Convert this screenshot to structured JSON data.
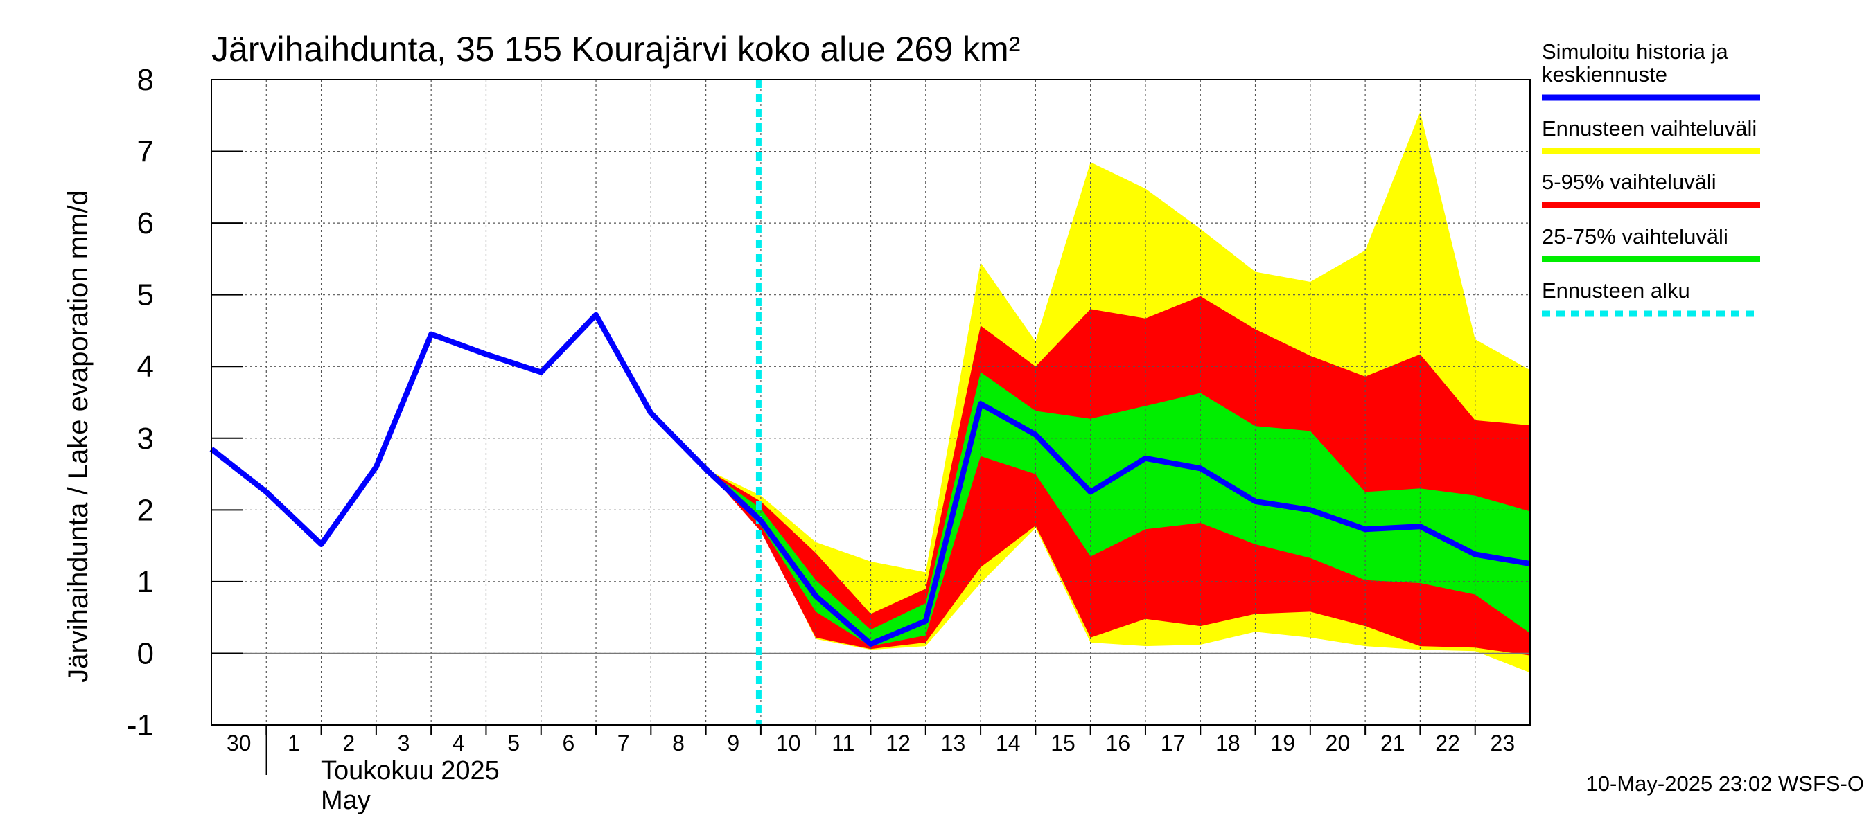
{
  "chart_data": {
    "type": "area",
    "title": "Järvihaihdunta, 35 155 Kourajärvi koko alue 269 km²",
    "ylabel": "Järvihaihdunta / Lake evaporation   mm/d",
    "ylim": [
      -1,
      8
    ],
    "yticks": [
      "-1",
      "0",
      "1",
      "2",
      "3",
      "4",
      "5",
      "6",
      "7",
      "8"
    ],
    "x_tick_labels": [
      "30",
      "1",
      "2",
      "3",
      "4",
      "5",
      "6",
      "7",
      "8",
      "9",
      "10",
      "11",
      "12",
      "13",
      "14",
      "15",
      "16",
      "17",
      "18",
      "19",
      "20",
      "21",
      "22",
      "23"
    ],
    "month_label_fi": "Toukokuu  2025",
    "month_label_en": "May",
    "grid": true,
    "legend_position": "right",
    "forecast_start_day": 10,
    "history": {
      "name": "Simuloitu historia ja keskiennuste",
      "color": "#0000ff",
      "x": [
        0,
        1,
        2,
        3,
        4,
        5,
        6,
        7,
        8,
        9,
        10
      ],
      "values": [
        2.85,
        2.25,
        1.52,
        2.6,
        4.45,
        4.17,
        3.92,
        4.72,
        3.35,
        2.57,
        1.85
      ]
    },
    "median": {
      "x": [
        9,
        10,
        11,
        12,
        13,
        14,
        15,
        16,
        17,
        18,
        19,
        20,
        21,
        22,
        23,
        24
      ],
      "values": [
        2.57,
        1.85,
        0.8,
        0.13,
        0.45,
        3.48,
        3.05,
        2.25,
        2.72,
        2.58,
        2.12,
        2.0,
        1.73,
        1.77,
        1.38,
        1.25
      ]
    },
    "bands": [
      {
        "name": "Ennusteen vaihteluväli",
        "color": "#ffff00",
        "x": [
          9,
          10,
          11,
          12,
          13,
          14,
          15,
          16,
          17,
          18,
          19,
          20,
          21,
          22,
          23,
          24
        ],
        "upper": [
          2.57,
          2.2,
          1.55,
          1.28,
          1.13,
          5.45,
          4.35,
          6.85,
          6.48,
          5.92,
          5.32,
          5.18,
          5.62,
          7.55,
          4.38,
          3.95
        ],
        "lower": [
          2.57,
          1.75,
          0.2,
          0.05,
          0.1,
          0.98,
          1.75,
          0.15,
          0.1,
          0.12,
          0.3,
          0.22,
          0.1,
          0.05,
          0.03,
          -0.27
        ]
      },
      {
        "name": "5-95% vaihteluväli",
        "color": "#ff0000",
        "x": [
          9,
          10,
          11,
          12,
          13,
          14,
          15,
          16,
          17,
          18,
          19,
          20,
          21,
          22,
          23,
          24
        ],
        "upper": [
          2.57,
          2.12,
          1.4,
          0.55,
          0.9,
          4.57,
          4.0,
          4.8,
          4.67,
          4.98,
          4.52,
          4.15,
          3.86,
          4.17,
          3.25,
          3.18
        ],
        "lower": [
          2.57,
          1.7,
          0.22,
          0.06,
          0.15,
          1.2,
          1.78,
          0.22,
          0.48,
          0.38,
          0.55,
          0.58,
          0.38,
          0.1,
          0.08,
          -0.03
        ]
      },
      {
        "name": "25-75% vaihteluväli",
        "color": "#00ee00",
        "x": [
          9,
          10,
          11,
          12,
          13,
          14,
          15,
          16,
          17,
          18,
          19,
          20,
          21,
          22,
          23,
          24
        ],
        "upper": [
          2.57,
          2.02,
          1.02,
          0.33,
          0.7,
          3.92,
          3.38,
          3.27,
          3.45,
          3.63,
          3.17,
          3.1,
          2.25,
          2.3,
          2.2,
          1.98
        ],
        "lower": [
          2.57,
          1.78,
          0.58,
          0.1,
          0.25,
          2.75,
          2.5,
          1.35,
          1.73,
          1.82,
          1.52,
          1.33,
          1.02,
          0.98,
          0.82,
          0.28
        ]
      }
    ],
    "legend": [
      {
        "label": "Simuloitu historia ja",
        "label2": "keskiennuste",
        "color": "#0000ff",
        "style": "solid"
      },
      {
        "label": "Ennusteen vaihteluväli",
        "label2": "",
        "color": "#ffff00",
        "style": "solid"
      },
      {
        "label": "5-95% vaihteluväli",
        "label2": "",
        "color": "#ff0000",
        "style": "solid"
      },
      {
        "label": "25-75% vaihteluväli",
        "label2": "",
        "color": "#00ee00",
        "style": "solid"
      },
      {
        "label": "Ennusteen alku",
        "label2": "",
        "color": "#00eeee",
        "style": "dashed"
      }
    ]
  },
  "footer": "10-May-2025 23:02 WSFS-O"
}
